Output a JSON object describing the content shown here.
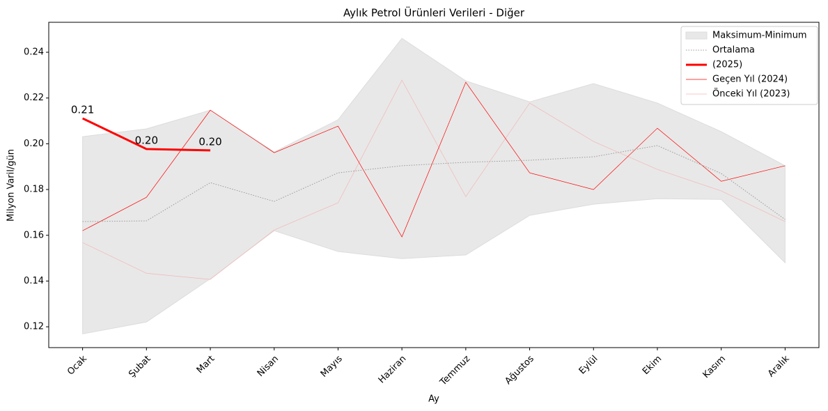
{
  "chart_data": {
    "type": "line",
    "title": "Aylık Petrol Ürünleri Verileri - Diğer",
    "x_label": "Ay",
    "y_label": "Milyon Varil/gün",
    "categories": [
      "Ocak",
      "Şubat",
      "Mart",
      "Nisan",
      "Mayıs",
      "Haziran",
      "Temmuz",
      "Ağustos",
      "Eylül",
      "Ekim",
      "Kasım",
      "Aralık"
    ],
    "band": {
      "name": "Maksimum-Minimum",
      "color": "#e8e8e8",
      "max": [
        0.2031,
        0.2065,
        0.2147,
        0.1964,
        0.2105,
        0.2461,
        0.2275,
        0.2183,
        0.2263,
        0.2178,
        0.2053,
        0.1904
      ],
      "min": [
        0.1169,
        0.1221,
        0.141,
        0.162,
        0.1529,
        0.1498,
        0.1514,
        0.1687,
        0.1736,
        0.176,
        0.1757,
        0.148
      ]
    },
    "series": [
      {
        "name": "Ortalama",
        "color": "#999999",
        "dashed": true,
        "values": [
          0.166,
          0.1663,
          0.183,
          0.1748,
          0.1873,
          0.1904,
          0.1919,
          0.1928,
          0.1943,
          0.1992,
          0.187,
          0.1669
        ]
      },
      {
        "name": " (2025)",
        "color": "#ff0000",
        "values": [
          0.2111,
          0.1977,
          0.1971,
          null,
          null,
          null,
          null,
          null,
          null,
          null,
          null,
          null
        ],
        "value_labels": [
          "0.21",
          "0.20",
          "0.20",
          null,
          null,
          null,
          null,
          null,
          null,
          null,
          null,
          null
        ]
      },
      {
        "name": "Geçen Yıl (2024)",
        "color": "#ff0000",
        "values": [
          0.162,
          0.1766,
          0.2147,
          0.1961,
          0.2077,
          0.1593,
          0.2269,
          0.1873,
          0.18,
          0.2068,
          0.1836,
          0.1904
        ]
      },
      {
        "name": "Önceki Yıl (2023)",
        "color": "#f4b6b6",
        "values": [
          0.1568,
          0.1434,
          0.1407,
          0.1623,
          0.1742,
          0.2278,
          0.1769,
          0.2178,
          0.201,
          0.1888,
          0.1794,
          0.166
        ]
      }
    ],
    "ylim": [
      0.1109,
      0.2531
    ],
    "yticks": [
      0.12,
      0.14,
      0.16,
      0.18,
      {
        "value": 0.2,
        "label": "0.20"
      },
      0.22,
      0.24
    ],
    "legend": "upper right",
    "grid": false
  }
}
